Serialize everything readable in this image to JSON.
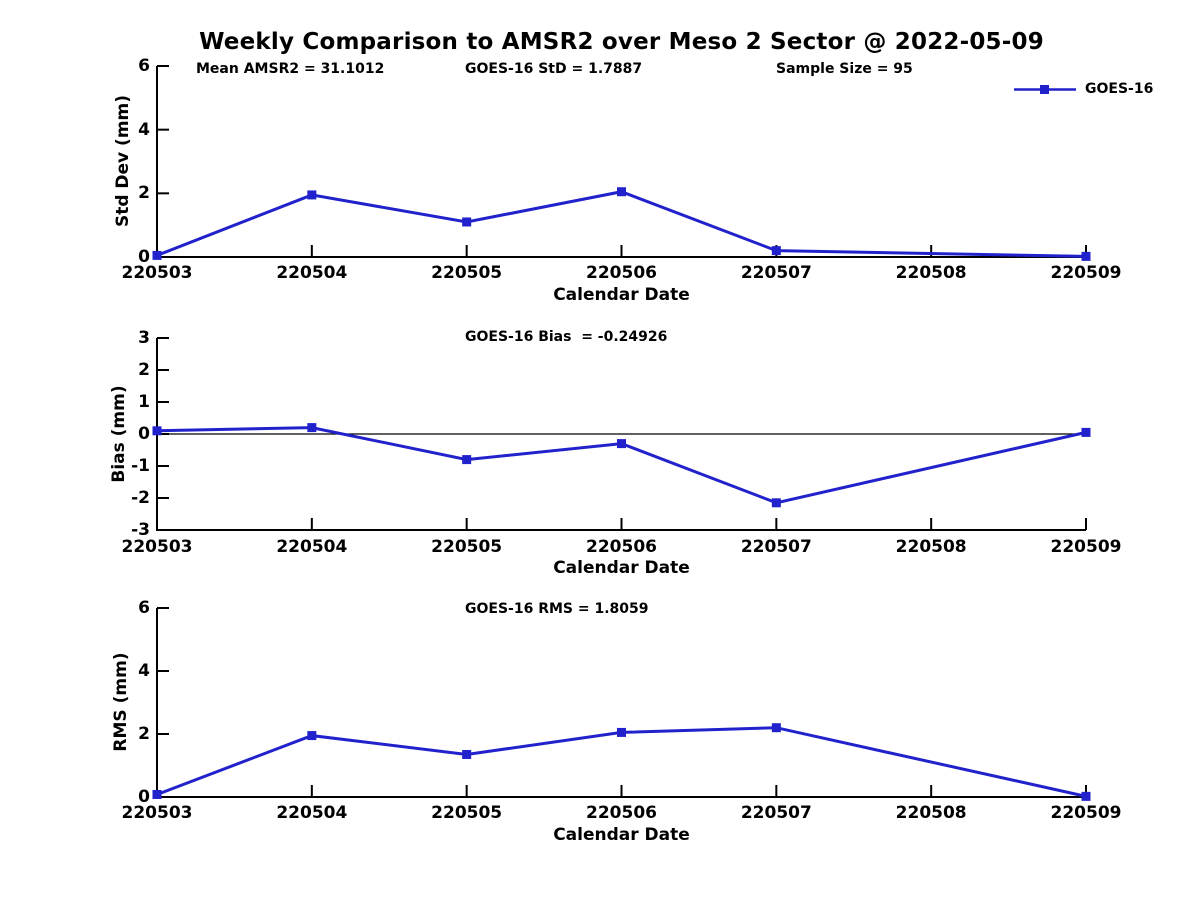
{
  "title": "Weekly Comparison to AMSR2 over Meso 2 Sector @ 2022-05-09",
  "legend": {
    "label": "GOES-16"
  },
  "colors": {
    "line": "#2222cc",
    "axis": "#000000",
    "text": "#000000"
  },
  "chart_data": [
    {
      "type": "line",
      "id": "stddev",
      "ylabel": "Std Dev (mm)",
      "xlabel": "Calendar Date",
      "ylim": [
        0,
        6
      ],
      "yticks": [
        0,
        2,
        4,
        6
      ],
      "categories": [
        "220503",
        "220504",
        "220505",
        "220506",
        "220507",
        "220508",
        "220509"
      ],
      "annotations": [
        "Mean AMSR2 = 31.1012",
        "GOES-16 StD = 1.7887",
        "Sample Size = 95"
      ],
      "zero_line": false,
      "legend_position": "upper-right-outside",
      "grid": false,
      "series": [
        {
          "name": "GOES-16",
          "points": [
            [
              "220503",
              0.05
            ],
            [
              "220504",
              1.95
            ],
            [
              "220505",
              1.1
            ],
            [
              "220506",
              2.05
            ],
            [
              "220507",
              0.2
            ],
            [
              "220509",
              0.02
            ]
          ]
        }
      ]
    },
    {
      "type": "line",
      "id": "bias",
      "ylabel": "Bias (mm)",
      "xlabel": "Calendar Date",
      "ylim": [
        -3,
        3
      ],
      "yticks": [
        -3,
        -2,
        -1,
        0,
        1,
        2,
        3
      ],
      "categories": [
        "220503",
        "220504",
        "220505",
        "220506",
        "220507",
        "220508",
        "220509"
      ],
      "annotations": [
        "GOES-16 Bias  = -0.24926"
      ],
      "zero_line": true,
      "grid": false,
      "series": [
        {
          "name": "GOES-16",
          "points": [
            [
              "220503",
              0.1
            ],
            [
              "220504",
              0.2
            ],
            [
              "220505",
              -0.8
            ],
            [
              "220506",
              -0.3
            ],
            [
              "220507",
              -2.15
            ],
            [
              "220509",
              0.05
            ]
          ]
        }
      ]
    },
    {
      "type": "line",
      "id": "rms",
      "ylabel": "RMS (mm)",
      "xlabel": "Calendar Date",
      "ylim": [
        0,
        6
      ],
      "yticks": [
        0,
        2,
        4,
        6
      ],
      "categories": [
        "220503",
        "220504",
        "220505",
        "220506",
        "220507",
        "220508",
        "220509"
      ],
      "annotations": [
        "GOES-16 RMS = 1.8059"
      ],
      "zero_line": false,
      "grid": false,
      "series": [
        {
          "name": "GOES-16",
          "points": [
            [
              "220503",
              0.08
            ],
            [
              "220504",
              1.95
            ],
            [
              "220505",
              1.35
            ],
            [
              "220506",
              2.05
            ],
            [
              "220507",
              2.2
            ],
            [
              "220509",
              0.02
            ]
          ]
        }
      ]
    }
  ]
}
